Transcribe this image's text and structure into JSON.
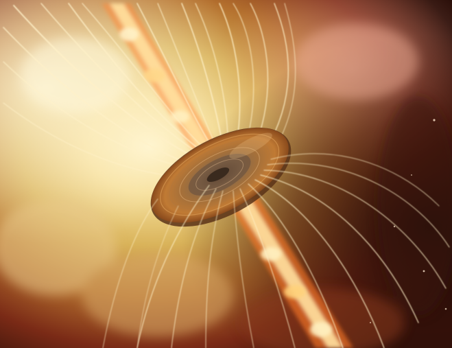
{
  "image": {
    "alt": "",
    "colors": {
      "glow_core": "#fff3c4",
      "glow_mid": "#f0c36a",
      "nebula_red": "#8a2418",
      "deep_space": "#1a0c08",
      "jet": "#ff7a2a",
      "jet_core": "#ffe3a0",
      "disk_outer": "#b36a2c",
      "disk_inner": "#6b4a2e",
      "field_lines": "#fff1c8"
    },
    "icons": [
      "magnetic-field-line",
      "accretion-disk",
      "bipolar-jet",
      "star"
    ]
  }
}
